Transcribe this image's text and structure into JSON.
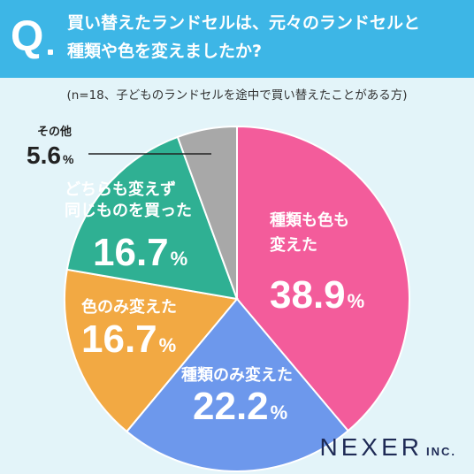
{
  "header": {
    "q_mark": "Q",
    "question_line1": "買い替えたランドセルは、元々のランドセルと",
    "question_line2": "種類や色を変えましたか?"
  },
  "note": "(n=18、子どものランドセルを途中で買い替えたことがある方)",
  "brand": {
    "name": "NEXER",
    "suffix": "INC."
  },
  "colors": {
    "header_bg": "#3db6e6",
    "page_bg": "#e3f4f9",
    "pink": "#f35c9b",
    "blue": "#6d98ec",
    "orange": "#f2a943",
    "teal": "#2fb093",
    "gray": "#a8a8a8"
  },
  "chart_data": {
    "type": "pie",
    "start_angle_deg": 0,
    "direction": "clockwise",
    "slices": [
      {
        "label_lines": [
          "種類も色も",
          "変えた"
        ],
        "value": 38.9,
        "display": "38.9",
        "unit": "%",
        "color": "#f35c9b",
        "label_color": "#ffffff"
      },
      {
        "label_lines": [
          "種類のみ変えた"
        ],
        "value": 22.2,
        "display": "22.2",
        "unit": "%",
        "color": "#6d98ec",
        "label_color": "#ffffff"
      },
      {
        "label_lines": [
          "色のみ変えた"
        ],
        "value": 16.7,
        "display": "16.7",
        "unit": "%",
        "color": "#f2a943",
        "label_color": "#ffffff"
      },
      {
        "label_lines": [
          "どちらも変えず",
          "同じものを買った"
        ],
        "value": 16.7,
        "display": "16.7",
        "unit": "%",
        "color": "#2fb093",
        "label_color": "#ffffff"
      },
      {
        "label_lines": [
          "その他"
        ],
        "value": 5.6,
        "display": "5.6",
        "unit": "%",
        "color": "#a8a8a8",
        "label_color": "#222222"
      }
    ]
  }
}
